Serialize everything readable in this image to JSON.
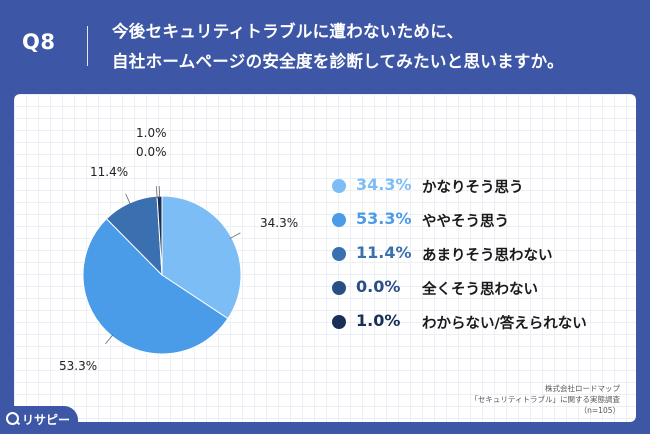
{
  "header": {
    "q_label": "Q8",
    "question_line1": "今後セキュリティトラブルに遭わないために、",
    "question_line2": "自社ホームページの安全度を診断してみたいと思いますか。"
  },
  "chart_data": {
    "type": "pie",
    "slices": [
      {
        "label": "かなりそう思う",
        "value": 34.3,
        "display": "34.3%",
        "color": "#7cbdf5"
      },
      {
        "label": "ややそう思う",
        "value": 53.3,
        "display": "53.3%",
        "color": "#4a9be8"
      },
      {
        "label": "あまりそう思わない",
        "value": 11.4,
        "display": "11.4%",
        "color": "#3a6fb0"
      },
      {
        "label": "全くそう思わない",
        "value": 0.0,
        "display": "0.0%",
        "color": "#2a4f86"
      },
      {
        "label": "わからない/答えられない",
        "value": 1.0,
        "display": "1.0%",
        "color": "#1a2f55"
      }
    ],
    "start": "top",
    "direction": "clockwise",
    "legend_placement": "right"
  },
  "source": {
    "line1": "株式会社ロードマップ",
    "line2": "「セキュリティトラブル」に関する実態調査",
    "line3": "（n=105）"
  },
  "logo": {
    "text": "リサピー",
    "icon": "search-icon"
  }
}
